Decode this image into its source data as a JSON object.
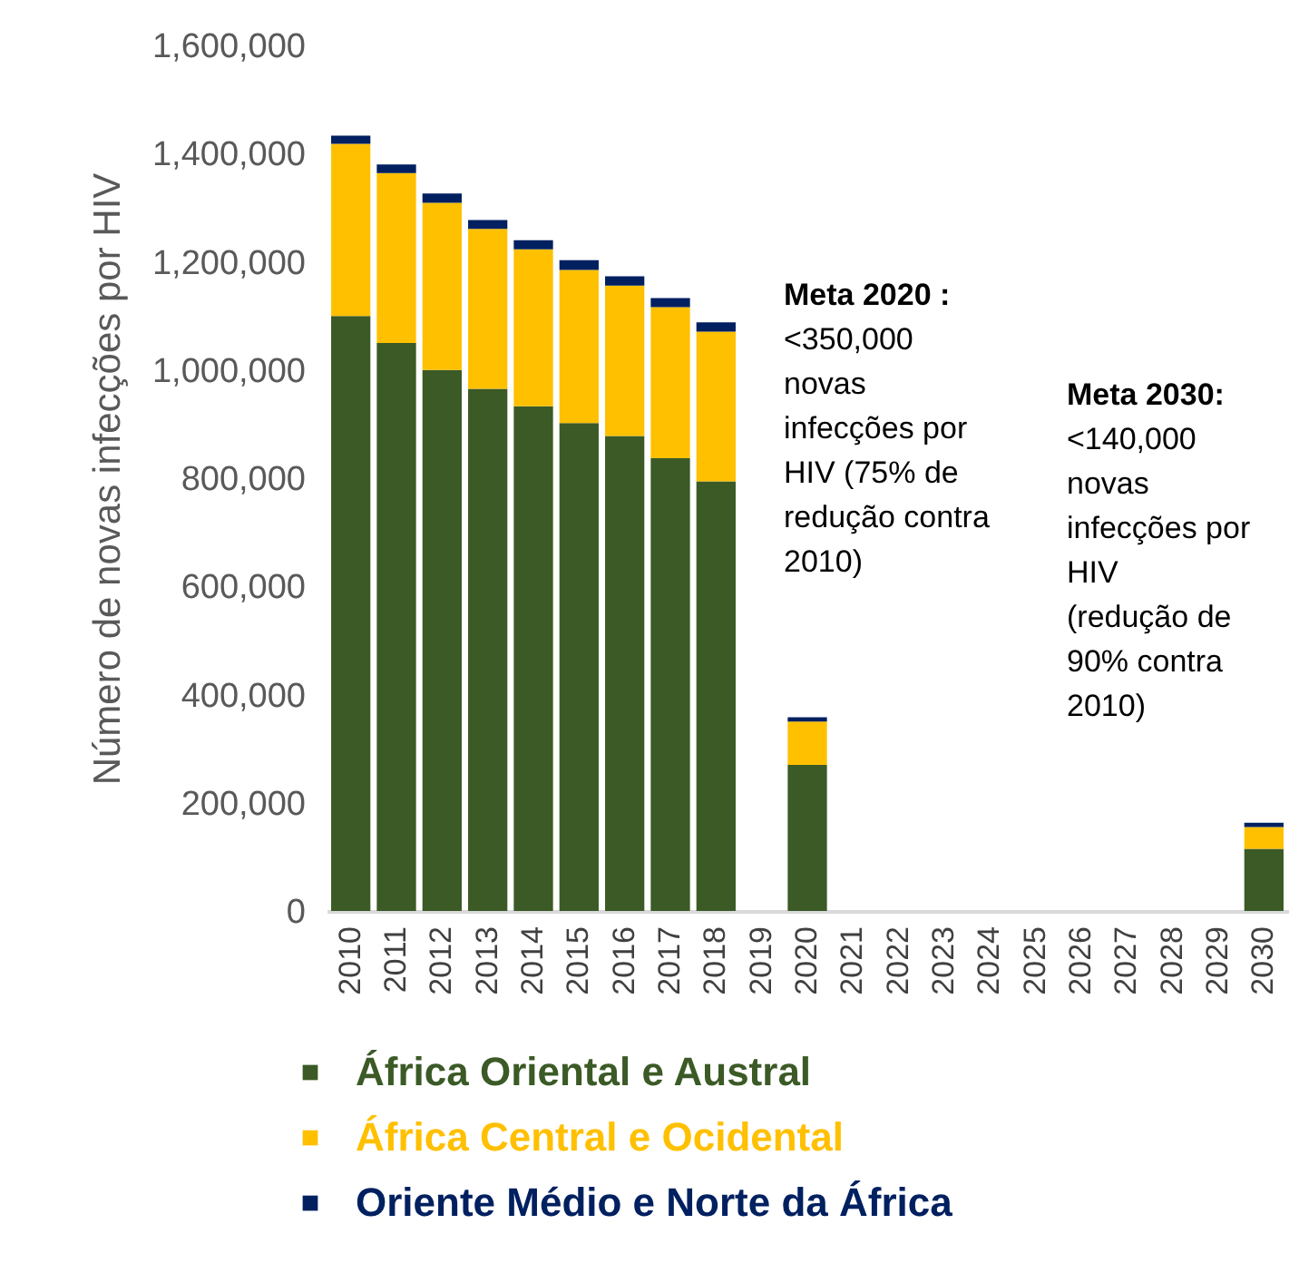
{
  "chart_data": {
    "type": "bar",
    "stacked": true,
    "ylabel": "Número de novas infecções por HIV",
    "categories": [
      "2010",
      "2011",
      "2012",
      "2013",
      "2014",
      "2015",
      "2016",
      "2017",
      "2018",
      "2019",
      "2020",
      "2021",
      "2022",
      "2023",
      "2024",
      "2025",
      "2026",
      "2027",
      "2028",
      "2029",
      "2030"
    ],
    "series": [
      {
        "name": "África Oriental e Austral",
        "color": "#3b5a26",
        "values": [
          1100000,
          1050000,
          1000000,
          965000,
          933000,
          902000,
          878000,
          837000,
          794000,
          null,
          270000,
          null,
          null,
          null,
          null,
          null,
          null,
          null,
          null,
          null,
          115000
        ]
      },
      {
        "name": "África Central e Ocidental",
        "color": "#ffc000",
        "values": [
          318000,
          314000,
          309000,
          296000,
          290000,
          283000,
          278000,
          279000,
          277000,
          null,
          80000,
          null,
          null,
          null,
          null,
          null,
          null,
          null,
          null,
          null,
          40000
        ]
      },
      {
        "name": "Oriente Médio e Norte da África",
        "color": "#002060",
        "values": [
          15000,
          16000,
          17000,
          16000,
          17000,
          18000,
          17000,
          17000,
          17000,
          null,
          8000,
          null,
          null,
          null,
          null,
          null,
          null,
          null,
          null,
          null,
          8000
        ]
      }
    ],
    "ylim": [
      0,
      1600000
    ],
    "yticks": [
      0,
      {
        "value": 200000,
        "label": "200,000"
      },
      {
        "value": 400000,
        "label": "400,000"
      },
      {
        "value": 600000,
        "label": "600,000"
      },
      {
        "value": 800000,
        "label": "800,000"
      },
      {
        "value": 1000000,
        "label": "1,000,000"
      },
      {
        "value": 1200000,
        "label": "1,200,000"
      },
      {
        "value": 1400000,
        "label": "1,400,000"
      },
      {
        "value": 1600000,
        "label": "1,600,000"
      }
    ],
    "grid": false,
    "legend": "bottom",
    "annotations": [
      "Meta 2020 :\n<350,000\nnovas\ninfecções por\nHIV (75% de\nredução contra\n2010)",
      "Meta 2030:\n<140,000\nnovas\ninfecções por\nHIV\n(redução de\n90% contra\n2010)"
    ]
  }
}
